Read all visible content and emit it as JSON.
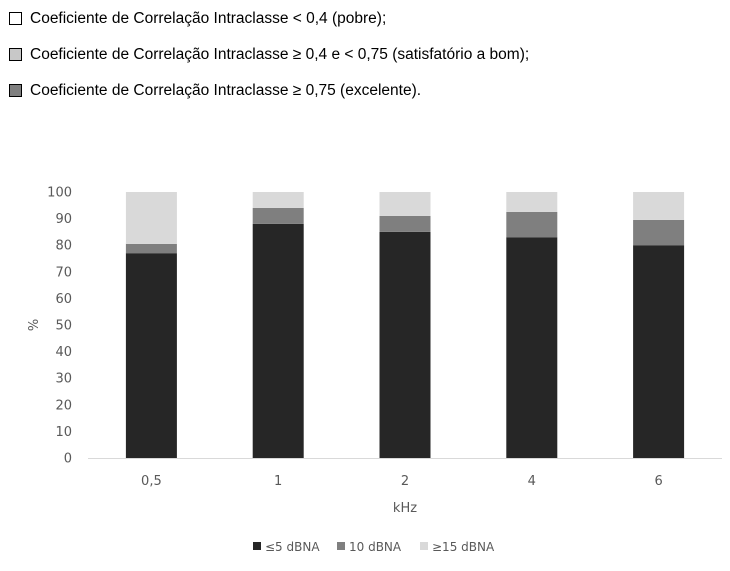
{
  "top_legend": [
    {
      "label": "Coeficiente de Correlação Intraclasse < 0,4 (pobre);",
      "color": "#ffffff"
    },
    {
      "label": "Coeficiente de Correlação Intraclasse ≥ 0,4 e < 0,75 (satisfatório a bom);",
      "color": "#c8c8c8"
    },
    {
      "label": "Coeficiente de Correlação Intraclasse ≥ 0,75 (excelente).",
      "color": "#7f7f7f"
    }
  ],
  "chart_data": {
    "type": "bar",
    "stacked": true,
    "categories": [
      "0,5",
      "1",
      "2",
      "4",
      "6"
    ],
    "series": [
      {
        "name": "≤5 dBNA",
        "values": [
          77,
          88,
          85,
          83,
          80
        ],
        "color": "#262626"
      },
      {
        "name": "10 dBNA",
        "values": [
          3.5,
          6,
          6,
          9.5,
          9.5
        ],
        "color": "#7f7f7f"
      },
      {
        "name": "≥15 dBNA",
        "values": [
          19.5,
          6,
          9,
          7.5,
          10.5
        ],
        "color": "#d9d9d9"
      }
    ],
    "xlabel": "kHz",
    "ylabel": "%",
    "ylim": [
      0,
      100
    ],
    "yticks": [
      0,
      10,
      20,
      30,
      40,
      50,
      60,
      70,
      80,
      90,
      100
    ],
    "grid": false,
    "legend_position": "bottom"
  }
}
